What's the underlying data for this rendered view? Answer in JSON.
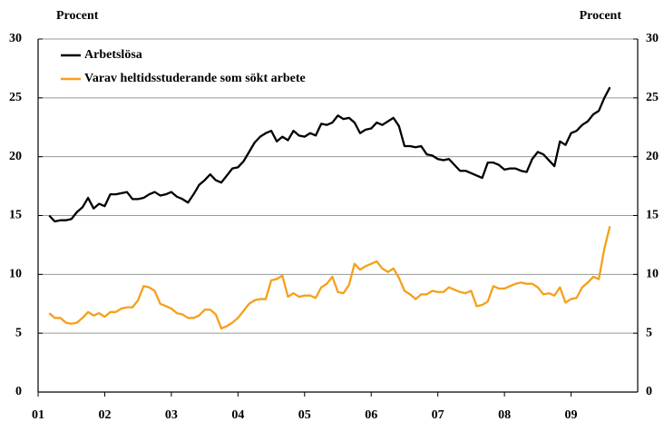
{
  "chart_data": {
    "type": "line",
    "y_label": "Procent",
    "y2_label": "Procent",
    "categories": [
      "01",
      null,
      null,
      null,
      null,
      null,
      null,
      null,
      null,
      null,
      null,
      null,
      "02",
      null,
      null,
      null,
      null,
      null,
      null,
      null,
      null,
      null,
      null,
      null,
      "03",
      null,
      null,
      null,
      null,
      null,
      null,
      null,
      null,
      null,
      null,
      null,
      "04",
      null,
      null,
      null,
      null,
      null,
      null,
      null,
      null,
      null,
      null,
      null,
      "05",
      null,
      null,
      null,
      null,
      null,
      null,
      null,
      null,
      null,
      null,
      null,
      "06",
      null,
      null,
      null,
      null,
      null,
      null,
      null,
      null,
      null,
      null,
      null,
      "07",
      null,
      null,
      null,
      null,
      null,
      null,
      null,
      null,
      null,
      null,
      null,
      "08",
      null,
      null,
      null,
      null,
      null,
      null,
      null,
      null,
      null,
      null,
      null,
      "09",
      null,
      null,
      null,
      null,
      null,
      null,
      null
    ],
    "series": [
      {
        "name": "Arbetslösa",
        "color": "#000000",
        "values": [
          null,
          null,
          15.0,
          14.5,
          14.6,
          14.6,
          14.7,
          15.3,
          15.7,
          16.5,
          15.6,
          16.0,
          15.8,
          16.8,
          16.8,
          16.9,
          17.0,
          16.4,
          16.4,
          16.5,
          16.8,
          17.0,
          16.7,
          16.8,
          17.0,
          16.6,
          16.4,
          16.1,
          16.8,
          17.6,
          18.0,
          18.5,
          18.0,
          17.8,
          18.4,
          19.0,
          19.1,
          19.6,
          20.4,
          21.2,
          21.7,
          22.0,
          22.2,
          21.3,
          21.7,
          21.4,
          22.2,
          21.8,
          21.7,
          22.0,
          21.8,
          22.8,
          22.7,
          22.9,
          23.5,
          23.2,
          23.3,
          22.9,
          22.0,
          22.3,
          22.4,
          22.9,
          22.7,
          23.0,
          23.3,
          22.6,
          20.9,
          20.9,
          20.8,
          20.9,
          20.2,
          20.1,
          19.8,
          19.7,
          19.8,
          19.3,
          18.8,
          18.8,
          18.6,
          18.4,
          18.2,
          19.5,
          19.5,
          19.3,
          18.9,
          19.0,
          19.0,
          18.8,
          18.7,
          19.8,
          20.4,
          20.2,
          19.7,
          19.2,
          21.3,
          21.0,
          22.0,
          22.2,
          22.7,
          23.0,
          23.6,
          23.9,
          25.0,
          25.9
        ]
      },
      {
        "name": "Varav heltidsstuderande som sökt arbete",
        "color": "#f5a01a",
        "values": [
          null,
          null,
          6.7,
          6.3,
          6.3,
          5.9,
          5.8,
          5.9,
          6.3,
          6.8,
          6.5,
          6.7,
          6.4,
          6.8,
          6.8,
          7.1,
          7.2,
          7.2,
          7.8,
          9.0,
          8.9,
          8.6,
          7.5,
          7.3,
          7.1,
          6.7,
          6.6,
          6.3,
          6.3,
          6.5,
          7.0,
          7.0,
          6.6,
          5.4,
          5.6,
          5.9,
          6.3,
          6.9,
          7.5,
          7.8,
          7.9,
          7.9,
          9.5,
          9.6,
          9.9,
          8.1,
          8.4,
          8.1,
          8.2,
          8.2,
          8.0,
          8.9,
          9.2,
          9.8,
          8.5,
          8.4,
          9.1,
          10.9,
          10.4,
          10.7,
          10.9,
          11.1,
          10.5,
          10.2,
          10.5,
          9.7,
          8.6,
          8.3,
          7.9,
          8.3,
          8.3,
          8.6,
          8.5,
          8.5,
          8.9,
          8.7,
          8.5,
          8.4,
          8.6,
          7.3,
          7.4,
          7.7,
          9.0,
          8.8,
          8.8,
          9.0,
          9.2,
          9.3,
          9.2,
          9.2,
          8.9,
          8.3,
          8.4,
          8.2,
          8.9,
          7.6,
          7.9,
          8.0,
          8.9,
          9.3,
          9.8,
          9.6,
          12.2,
          14.1
        ]
      }
    ],
    "ylim": [
      0,
      30
    ],
    "yticks": [
      0,
      5,
      10,
      15,
      20,
      25,
      30
    ],
    "y2lim": [
      0,
      30
    ],
    "y2ticks": [
      0,
      5,
      10,
      15,
      20,
      25,
      30
    ],
    "grid": true,
    "legend": "upper left"
  }
}
